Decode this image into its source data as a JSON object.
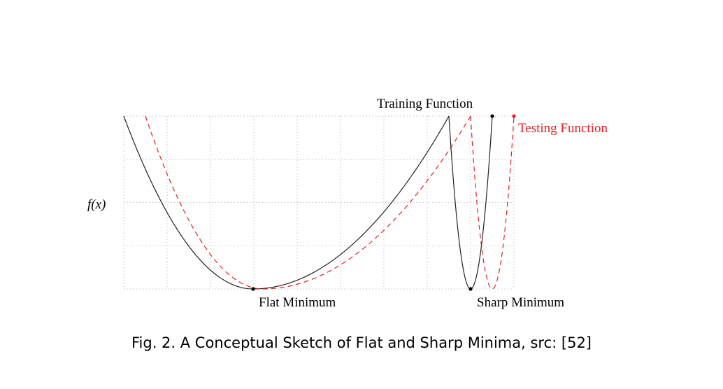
{
  "chart_data": {
    "type": "line",
    "ylabel": "f(x)",
    "grid": true,
    "series": [
      {
        "name": "Training Function",
        "style": "solid",
        "color": "#000000"
      },
      {
        "name": "Testing Function",
        "style": "dashed",
        "color": "#ee1c1c"
      }
    ],
    "annotations": [
      "Flat Minimum",
      "Sharp Minimum"
    ]
  },
  "caption": "Fig. 2.  A Conceptual Sketch of Flat and Sharp Minima, src: [52]"
}
